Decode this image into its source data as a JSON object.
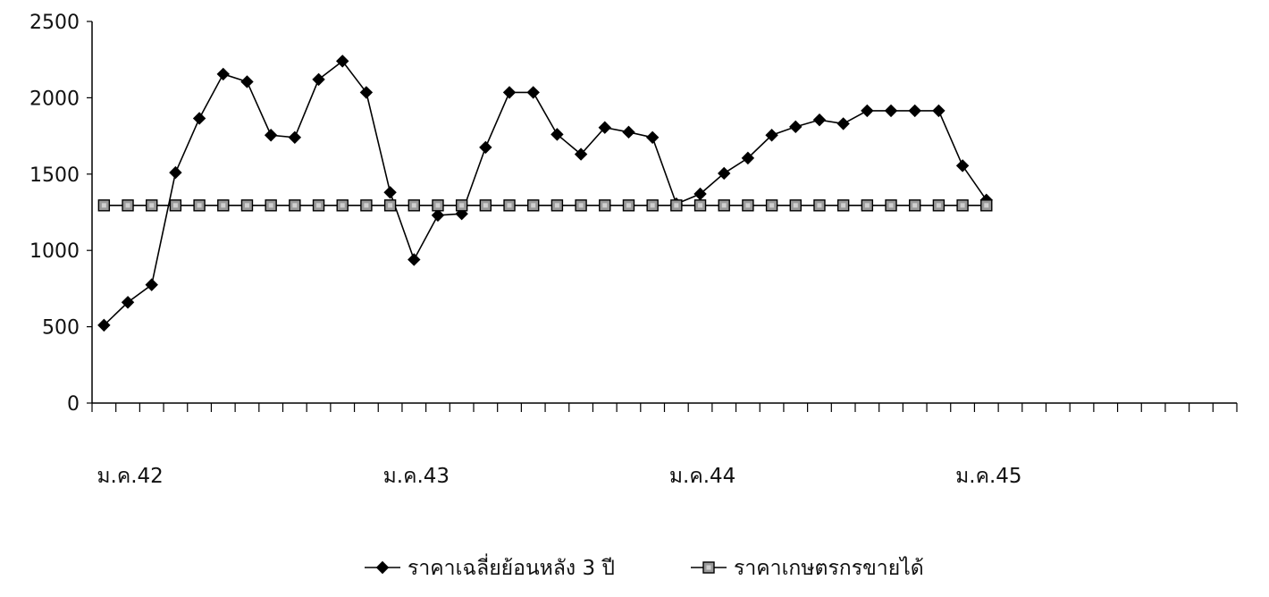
{
  "chart_data": {
    "type": "line",
    "title": "",
    "xlabel": "",
    "ylabel": "",
    "ylim": [
      0,
      2500
    ],
    "yticks": [
      0,
      500,
      1000,
      1500,
      2000,
      2500
    ],
    "grid": false,
    "legend_position": "bottom",
    "x_period_count": 48,
    "category_labels": [
      {
        "label": "ม.ค.42",
        "index": 0
      },
      {
        "label": "ม.ค.43",
        "index": 12
      },
      {
        "label": "ม.ค.44",
        "index": 24
      },
      {
        "label": "ม.ค.45",
        "index": 36
      }
    ],
    "series": [
      {
        "name": "ราคาเฉลี่ยย้อนหลัง 3 ปี",
        "marker": "diamond",
        "color": "#000000",
        "values": [
          510,
          660,
          775,
          1510,
          1865,
          2155,
          2105,
          1755,
          1740,
          2120,
          2240,
          2035,
          1380,
          940,
          1230,
          1240,
          1675,
          2035,
          2035,
          1760,
          1630,
          1805,
          1775,
          1740,
          1305,
          1370,
          1505,
          1605,
          1755,
          1810,
          1855,
          1830,
          1915,
          1915,
          1915,
          1915,
          1555,
          1330
        ]
      },
      {
        "name": "ราคาเกษตรกรขายได้",
        "marker": "square",
        "color": "#000000",
        "values": [
          1295,
          1295,
          1295,
          1295,
          1295,
          1295,
          1295,
          1295,
          1295,
          1295,
          1295,
          1295,
          1295,
          1295,
          1295,
          1295,
          1295,
          1295,
          1295,
          1295,
          1295,
          1295,
          1295,
          1295,
          1295,
          1295,
          1295,
          1295,
          1295,
          1295,
          1295,
          1295,
          1295,
          1295,
          1295,
          1295,
          1295,
          1295
        ]
      }
    ]
  }
}
